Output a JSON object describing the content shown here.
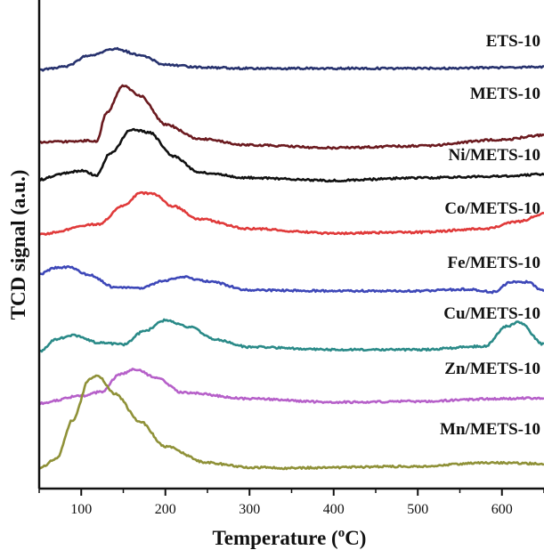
{
  "chart_data": {
    "type": "line",
    "xlabel": "Temperature (",
    "xlabel_super": "o",
    "xlabel_unit": "C)",
    "ylabel": "TCD signal (a.u.)",
    "xlim": [
      50,
      650
    ],
    "xticks": [
      "100",
      "200",
      "300",
      "400",
      "500",
      "600"
    ],
    "xtick_values": [
      100,
      200,
      300,
      400,
      500,
      600
    ],
    "legend": "inline-right",
    "grid": false,
    "series": [
      {
        "name": "ETS-10",
        "color": "#27326e",
        "points": [
          [
            50,
            0.37
          ],
          [
            80,
            0.52
          ],
          [
            110,
            1.09
          ],
          [
            140,
            1.4
          ],
          [
            170,
            1.09
          ],
          [
            200,
            0.61
          ],
          [
            250,
            0.48
          ],
          [
            300,
            0.44
          ],
          [
            400,
            0.44
          ],
          [
            500,
            0.44
          ],
          [
            600,
            0.48
          ],
          [
            650,
            0.52
          ]
        ]
      },
      {
        "name": "METS-10",
        "color": "#6b1a1f",
        "points": [
          [
            50,
            0.43
          ],
          [
            90,
            0.48
          ],
          [
            110,
            0.52
          ],
          [
            118,
            0.48
          ],
          [
            130,
            1.88
          ],
          [
            150,
            3.2
          ],
          [
            170,
            2.71
          ],
          [
            200,
            1.31
          ],
          [
            240,
            0.61
          ],
          [
            300,
            0.3
          ],
          [
            400,
            0.17
          ],
          [
            500,
            0.26
          ],
          [
            600,
            0.57
          ],
          [
            650,
            0.79
          ]
        ]
      },
      {
        "name": "Ni/METS-10",
        "color": "#111111",
        "points": [
          [
            50,
            0.44
          ],
          [
            80,
            0.75
          ],
          [
            100,
            0.88
          ],
          [
            118,
            0.66
          ],
          [
            135,
            1.75
          ],
          [
            160,
            2.89
          ],
          [
            180,
            2.76
          ],
          [
            210,
            1.58
          ],
          [
            240,
            0.79
          ],
          [
            300,
            0.53
          ],
          [
            400,
            0.4
          ],
          [
            500,
            0.53
          ],
          [
            600,
            0.61
          ],
          [
            650,
            0.7
          ]
        ]
      },
      {
        "name": "Co/METS-10",
        "color": "#e03a3a",
        "points": [
          [
            50,
            0.39
          ],
          [
            120,
            0.87
          ],
          [
            150,
            1.78
          ],
          [
            170,
            2.4
          ],
          [
            185,
            2.35
          ],
          [
            210,
            1.74
          ],
          [
            240,
            1.13
          ],
          [
            300,
            0.65
          ],
          [
            400,
            0.43
          ],
          [
            500,
            0.48
          ],
          [
            580,
            0.65
          ],
          [
            620,
            1.0
          ],
          [
            650,
            1.39
          ]
        ]
      },
      {
        "name": "Fe/METS-10",
        "color": "#3d47b8",
        "points": [
          [
            50,
            1.52
          ],
          [
            70,
            1.83
          ],
          [
            85,
            1.87
          ],
          [
            110,
            1.48
          ],
          [
            140,
            0.87
          ],
          [
            170,
            0.83
          ],
          [
            200,
            1.22
          ],
          [
            220,
            1.39
          ],
          [
            250,
            1.17
          ],
          [
            300,
            0.74
          ],
          [
            400,
            0.7
          ],
          [
            500,
            0.7
          ],
          [
            560,
            0.78
          ],
          [
            590,
            0.65
          ],
          [
            610,
            1.13
          ],
          [
            630,
            1.13
          ],
          [
            650,
            0.7
          ]
        ]
      },
      {
        "name": "Cu/METS-10",
        "color": "#2a8a88",
        "points": [
          [
            50,
            0.52
          ],
          [
            70,
            1.13
          ],
          [
            90,
            1.31
          ],
          [
            120,
            0.96
          ],
          [
            150,
            0.87
          ],
          [
            175,
            1.52
          ],
          [
            200,
            2.05
          ],
          [
            230,
            1.7
          ],
          [
            260,
            1.09
          ],
          [
            300,
            0.74
          ],
          [
            400,
            0.61
          ],
          [
            500,
            0.61
          ],
          [
            580,
            0.78
          ],
          [
            605,
            1.74
          ],
          [
            620,
            1.96
          ],
          [
            650,
            0.87
          ]
        ]
      },
      {
        "name": "Zn/METS-10",
        "color": "#b660c9",
        "points": [
          [
            50,
            0.52
          ],
          [
            100,
            0.87
          ],
          [
            125,
            1.09
          ],
          [
            145,
            1.92
          ],
          [
            165,
            2.18
          ],
          [
            190,
            1.74
          ],
          [
            220,
            1.04
          ],
          [
            300,
            0.74
          ],
          [
            400,
            0.57
          ],
          [
            500,
            0.61
          ],
          [
            600,
            0.74
          ],
          [
            650,
            0.78
          ]
        ]
      },
      {
        "name": "Mn/METS-10",
        "color": "#8f9138",
        "points": [
          [
            50,
            0.26
          ],
          [
            70,
            0.7
          ],
          [
            90,
            2.62
          ],
          [
            110,
            4.63
          ],
          [
            120,
            4.76
          ],
          [
            140,
            3.89
          ],
          [
            170,
            2.53
          ],
          [
            200,
            1.31
          ],
          [
            250,
            0.52
          ],
          [
            300,
            0.3
          ],
          [
            350,
            0.26
          ],
          [
            400,
            0.3
          ],
          [
            500,
            0.35
          ],
          [
            580,
            0.52
          ],
          [
            650,
            0.48
          ]
        ]
      }
    ]
  }
}
